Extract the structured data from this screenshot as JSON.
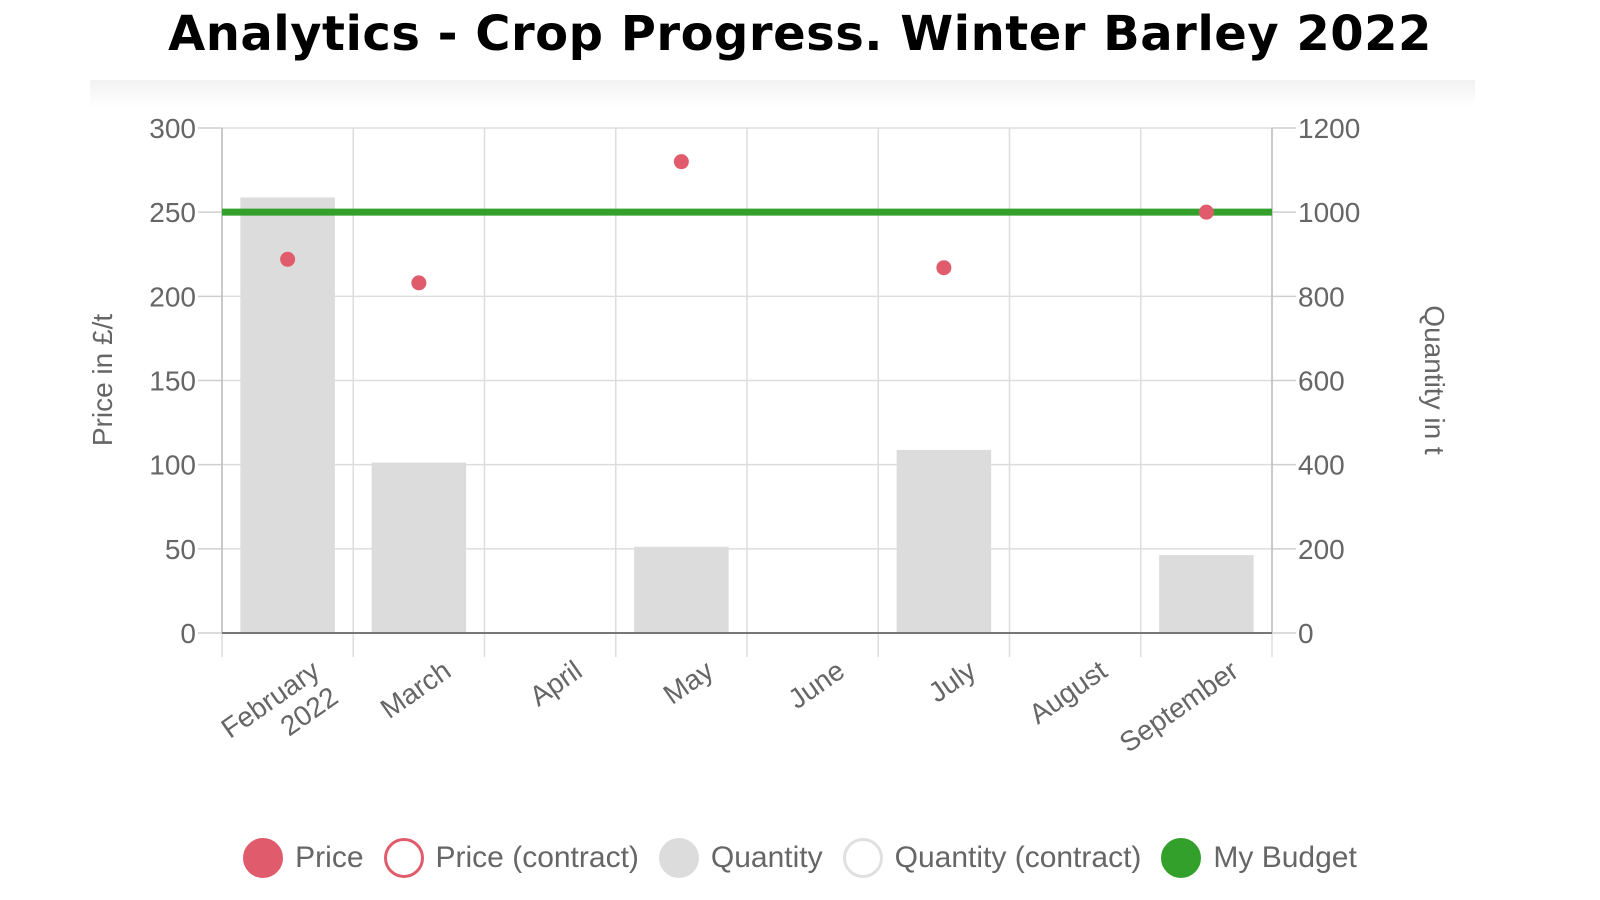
{
  "title": "Analytics - Crop Progress. Winter Barley 2022",
  "legend": [
    {
      "label": "Price",
      "fill": "#e05c6c",
      "stroke": "#e05c6c"
    },
    {
      "label": "Price (contract)",
      "fill": "#ffffff",
      "stroke": "#e05c6c"
    },
    {
      "label": "Quantity",
      "fill": "#dcdcdc",
      "stroke": "#dcdcdc"
    },
    {
      "label": "Quantity (contract)",
      "fill": "#ffffff",
      "stroke": "#e0e0e0"
    },
    {
      "label": "My Budget",
      "fill": "#33a02c",
      "stroke": "#33a02c"
    }
  ],
  "chart_data": {
    "type": "bar",
    "categories": [
      [
        "February",
        "2022"
      ],
      [
        "March"
      ],
      [
        "April"
      ],
      [
        "May"
      ],
      [
        "June"
      ],
      [
        "July"
      ],
      [
        "August"
      ],
      [
        "September"
      ]
    ],
    "y_left": {
      "label": "Price in £/t",
      "ticks": [
        0,
        50,
        100,
        150,
        200,
        250,
        300
      ],
      "ylim": [
        0,
        300
      ]
    },
    "y_right": {
      "label": "Quantity in t",
      "ticks": [
        0,
        200,
        400,
        600,
        800,
        1000,
        1200
      ],
      "ylim": [
        0,
        1200
      ]
    },
    "series": [
      {
        "name": "Quantity",
        "type": "bar",
        "axis": "right",
        "color": "#dcdcdc",
        "values": [
          1035,
          405,
          null,
          205,
          null,
          435,
          null,
          185
        ]
      },
      {
        "name": "Price",
        "type": "scatter",
        "axis": "left",
        "color": "#e05c6c",
        "values": [
          222,
          208,
          null,
          280,
          null,
          217,
          null,
          250
        ]
      },
      {
        "name": "My Budget",
        "type": "line",
        "axis": "left",
        "color": "#33a02c",
        "value": 250
      }
    ],
    "grid": true,
    "legend_position": "bottom"
  }
}
